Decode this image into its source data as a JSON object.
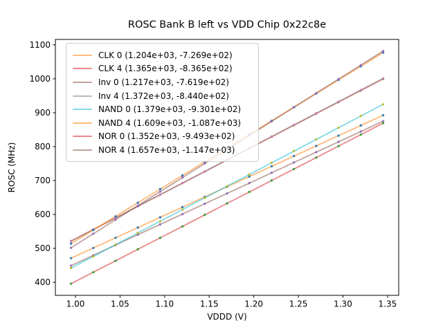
{
  "figure": {
    "background": "#ffffff",
    "spine_color": "#000000",
    "tick_color": "#000000"
  },
  "chart_data": {
    "type": "scatter",
    "title": "ROSC Bank B left vs VDD Chip 0x22c8e",
    "xlabel": "VDDD (V)",
    "ylabel": "ROSC (MHz)",
    "xlim": [
      0.9775,
      1.3625
    ],
    "ylim": [
      361.6,
      1116.0
    ],
    "xticks": [
      1.0,
      1.05,
      1.1,
      1.15,
      1.2,
      1.25,
      1.3,
      1.35
    ],
    "xtick_labels": [
      "1.00",
      "1.05",
      "1.10",
      "1.15",
      "1.20",
      "1.25",
      "1.30",
      "1.35"
    ],
    "yticks": [
      400,
      500,
      600,
      700,
      800,
      900,
      1000,
      1100
    ],
    "grid": false,
    "legend_position": "upper-left",
    "line_alpha": 0.55,
    "marker_alpha": 0.9,
    "x": [
      0.995,
      1.02,
      1.045,
      1.07,
      1.095,
      1.12,
      1.145,
      1.17,
      1.195,
      1.22,
      1.245,
      1.27,
      1.295,
      1.32,
      1.345
    ],
    "series": [
      {
        "name": "CLK 0",
        "legend_label": "CLK 0 (1.204e+03, -7.269e+02)",
        "fit_slope": 1204.0,
        "fit_intercept": -726.9,
        "line_color": "#ff7f0e",
        "marker_color": "#1f77b4",
        "values": [
          471.1,
          501.2,
          531.3,
          561.4,
          591.5,
          621.6,
          651.7,
          681.8,
          711.9,
          742.0,
          772.1,
          802.2,
          832.3,
          862.4,
          892.5
        ]
      },
      {
        "name": "CLK 4",
        "legend_label": "CLK 4 (1.365e+03, -8.365e+02)",
        "fit_slope": 1365.0,
        "fit_intercept": -836.5,
        "line_color": "#d62728",
        "marker_color": "#2ca02c",
        "values": [
          521.7,
          555.8,
          589.9,
          624.1,
          658.2,
          692.3,
          726.4,
          760.6,
          794.7,
          828.8,
          862.9,
          897.1,
          931.2,
          965.3,
          999.4
        ]
      },
      {
        "name": "Inv 0",
        "legend_label": "Inv 0 (1.217e+03, -7.619e+02)",
        "fit_slope": 1217.0,
        "fit_intercept": -761.9,
        "line_color": "#8c564b",
        "marker_color": "#9467bd",
        "values": [
          449.0,
          479.4,
          509.9,
          540.3,
          570.7,
          601.1,
          631.6,
          662.0,
          692.4,
          722.8,
          753.3,
          783.7,
          814.1,
          844.5,
          875.0
        ]
      },
      {
        "name": "Inv 4",
        "legend_label": "Inv 4 (1.372e+03, -8.440e+02)",
        "fit_slope": 1372.0,
        "fit_intercept": -844.0,
        "line_color": "#7f7f7f",
        "marker_color": "#e377c2",
        "values": [
          521.1,
          555.4,
          589.7,
          624.0,
          658.3,
          692.6,
          726.9,
          761.2,
          795.5,
          829.8,
          864.1,
          898.4,
          932.7,
          967.0,
          1001.3
        ]
      },
      {
        "name": "NAND 0",
        "legend_label": "NAND 0 (1.379e+03, -9.301e+02)",
        "fit_slope": 1379.0,
        "fit_intercept": -930.1,
        "line_color": "#17becf",
        "marker_color": "#bcbd22",
        "values": [
          442.0,
          476.5,
          511.0,
          545.4,
          579.9,
          614.4,
          648.9,
          683.3,
          717.8,
          752.3,
          786.8,
          821.2,
          855.7,
          890.2,
          924.7
        ]
      },
      {
        "name": "NAND 4",
        "legend_label": "NAND 4 (1.609e+03, -1.087e+03)",
        "fit_slope": 1609.0,
        "fit_intercept": -1087.0,
        "line_color": "#ff7f0e",
        "marker_color": "#1f77b4",
        "values": [
          514.0,
          554.2,
          594.4,
          634.6,
          674.9,
          715.1,
          755.3,
          795.5,
          835.8,
          876.0,
          916.2,
          956.4,
          996.7,
          1036.9,
          1077.1
        ]
      },
      {
        "name": "NOR 0",
        "legend_label": "NOR 0 (1.352e+03, -9.493e+02)",
        "fit_slope": 1352.0,
        "fit_intercept": -949.3,
        "line_color": "#d62728",
        "marker_color": "#2ca02c",
        "values": [
          395.9,
          429.7,
          463.5,
          497.3,
          531.1,
          564.9,
          598.7,
          632.5,
          666.3,
          700.1,
          733.9,
          767.7,
          801.5,
          835.3,
          869.1
        ]
      },
      {
        "name": "NOR 4",
        "legend_label": "NOR 4 (1.657e+03, -1.147e+03)",
        "fit_slope": 1657.0,
        "fit_intercept": -1147.0,
        "line_color": "#8c564b",
        "marker_color": "#9467bd",
        "values": [
          501.7,
          543.1,
          584.6,
          626.0,
          667.4,
          708.8,
          750.3,
          791.7,
          833.1,
          874.5,
          915.9,
          957.4,
          998.8,
          1040.2,
          1081.7
        ]
      }
    ]
  }
}
